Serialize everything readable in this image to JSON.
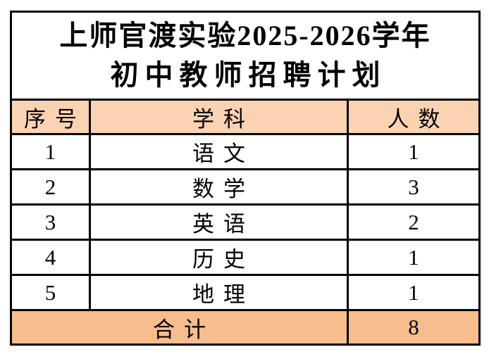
{
  "page": {
    "background": "#FFFFFF"
  },
  "table": {
    "title_line1": "上师官渡实验2025-2026学年",
    "title_line2": "初中教师招聘计划",
    "columns": [
      "序号",
      "学科",
      "人数"
    ],
    "rows": [
      {
        "no": "1",
        "subject": "语文",
        "count": "1"
      },
      {
        "no": "2",
        "subject": "数学",
        "count": "3"
      },
      {
        "no": "3",
        "subject": "英语",
        "count": "2"
      },
      {
        "no": "4",
        "subject": "历史",
        "count": "1"
      },
      {
        "no": "5",
        "subject": "地理",
        "count": "1"
      }
    ],
    "total_label": "合计",
    "total_value": "8",
    "colors": {
      "header_bg": "#FBD3B2",
      "total_bg": "#F8BD8C",
      "border": "#000000",
      "text": "#000000",
      "title_bg": "#FFFFFF"
    }
  },
  "chart_data": {
    "type": "table",
    "title": "上师官渡实验2025-2026学年初中教师招聘计划",
    "columns": [
      "序号",
      "学科",
      "人数"
    ],
    "rows": [
      [
        "1",
        "语文",
        "1"
      ],
      [
        "2",
        "数学",
        "3"
      ],
      [
        "3",
        "英语",
        "2"
      ],
      [
        "4",
        "历史",
        "1"
      ],
      [
        "5",
        "地理",
        "1"
      ]
    ],
    "total": {
      "label": "合计",
      "value": "8"
    }
  }
}
